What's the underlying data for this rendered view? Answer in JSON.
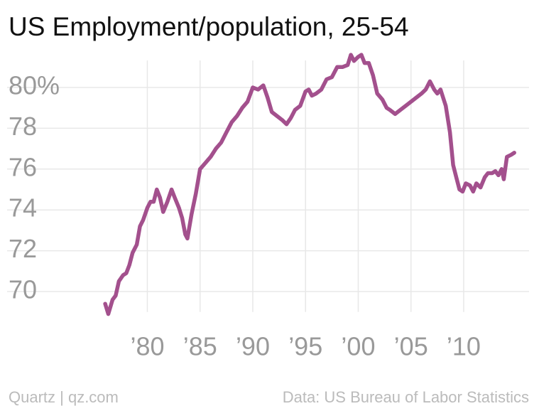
{
  "chart_data": {
    "type": "line",
    "title": "US Employment/population, 25-54",
    "source_left": "Quartz | qz.com",
    "source_right": "Data: US Bureau of Labor Statistics",
    "x": [
      1976.0,
      1976.3,
      1976.7,
      1977.0,
      1977.3,
      1977.7,
      1978.0,
      1978.3,
      1978.6,
      1979.0,
      1979.3,
      1979.6,
      1980.0,
      1980.3,
      1980.6,
      1980.9,
      1981.2,
      1981.5,
      1981.9,
      1982.3,
      1982.6,
      1983.0,
      1983.3,
      1983.6,
      1983.8,
      1984.2,
      1984.6,
      1985.0,
      1985.5,
      1986.0,
      1986.5,
      1987.0,
      1987.5,
      1988.0,
      1988.5,
      1989.0,
      1989.5,
      1990.0,
      1990.5,
      1991.0,
      1991.4,
      1991.8,
      1992.3,
      1992.8,
      1993.2,
      1993.6,
      1994.0,
      1994.5,
      1995.0,
      1995.3,
      1995.6,
      1996.0,
      1996.5,
      1997.0,
      1997.5,
      1998.0,
      1998.5,
      1999.0,
      1999.3,
      1999.6,
      2000.0,
      2000.3,
      2000.6,
      2001.0,
      2001.4,
      2001.8,
      2002.3,
      2002.7,
      2003.0,
      2003.5,
      2004.0,
      2004.5,
      2005.0,
      2005.5,
      2006.0,
      2006.4,
      2006.8,
      2007.2,
      2007.5,
      2007.8,
      2008.3,
      2008.7,
      2009.0,
      2009.3,
      2009.6,
      2009.9,
      2010.2,
      2010.6,
      2010.9,
      2011.2,
      2011.6,
      2012.0,
      2012.3,
      2012.7,
      2013.0,
      2013.3,
      2013.6,
      2013.8,
      2014.1,
      2014.5,
      2014.8
    ],
    "series": [
      {
        "name": "Employment/population, 25-54",
        "color": "#a3508d",
        "values": [
          69.4,
          68.9,
          69.6,
          69.8,
          70.5,
          70.8,
          70.9,
          71.3,
          71.9,
          72.3,
          73.2,
          73.5,
          74.1,
          74.4,
          74.4,
          75.0,
          74.6,
          73.9,
          74.4,
          75.0,
          74.6,
          74.1,
          73.6,
          72.8,
          72.6,
          73.8,
          74.8,
          76.0,
          76.3,
          76.6,
          77.0,
          77.3,
          77.8,
          78.3,
          78.6,
          79.0,
          79.3,
          80.0,
          79.9,
          80.1,
          79.5,
          78.8,
          78.6,
          78.4,
          78.2,
          78.5,
          78.9,
          79.1,
          79.8,
          79.9,
          79.6,
          79.7,
          79.9,
          80.4,
          80.5,
          81.0,
          81.0,
          81.1,
          81.6,
          81.3,
          81.5,
          81.6,
          81.2,
          81.2,
          80.6,
          79.7,
          79.4,
          79.0,
          78.9,
          78.7,
          78.9,
          79.1,
          79.3,
          79.5,
          79.7,
          79.9,
          80.3,
          79.9,
          79.7,
          79.9,
          79.1,
          77.8,
          76.2,
          75.6,
          75.0,
          74.9,
          75.3,
          75.2,
          74.9,
          75.3,
          75.1,
          75.6,
          75.8,
          75.8,
          75.9,
          75.7,
          76.0,
          75.5,
          76.6,
          76.7,
          76.8
        ]
      }
    ],
    "xlim": [
      1966.7,
      2016.2
    ],
    "xticks": [
      {
        "value": 1980,
        "label": "’80"
      },
      {
        "value": 1985,
        "label": "’85"
      },
      {
        "value": 1990,
        "label": "’90"
      },
      {
        "value": 1995,
        "label": "’95"
      },
      {
        "value": 2000,
        "label": "’00"
      },
      {
        "value": 2005,
        "label": "’05"
      },
      {
        "value": 2010,
        "label": "’10"
      }
    ],
    "ylim": [
      69,
      82
    ],
    "yticks": [
      70,
      72,
      74,
      76,
      78,
      {
        "value": 80,
        "label": "80%"
      }
    ],
    "grid": true
  }
}
